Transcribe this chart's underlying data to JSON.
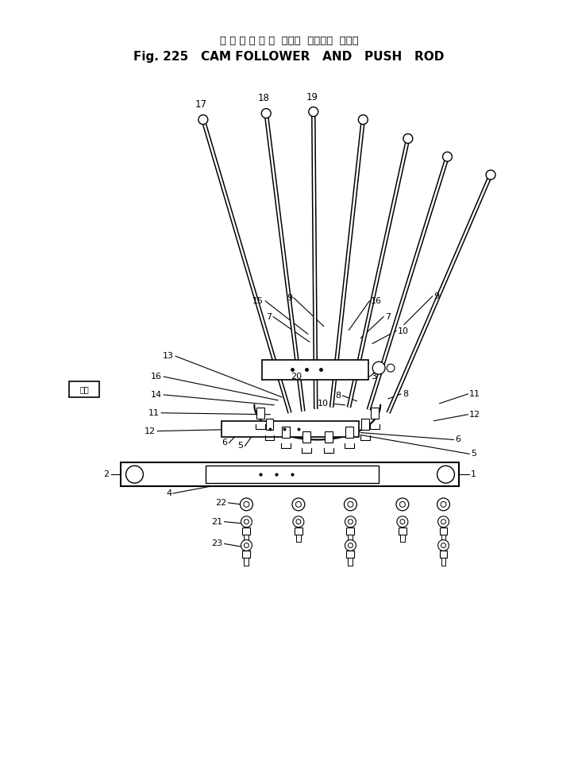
{
  "title_japanese": "カ ム フ ォ ロ ワ  および  プッシュ  ロッド",
  "title_english": "Fig. 225   CAM FOLLOWER   AND   PUSH   ROD",
  "bg_color": "#ffffff",
  "fig_width": 7.28,
  "fig_height": 9.73,
  "arrow_label": "前方"
}
